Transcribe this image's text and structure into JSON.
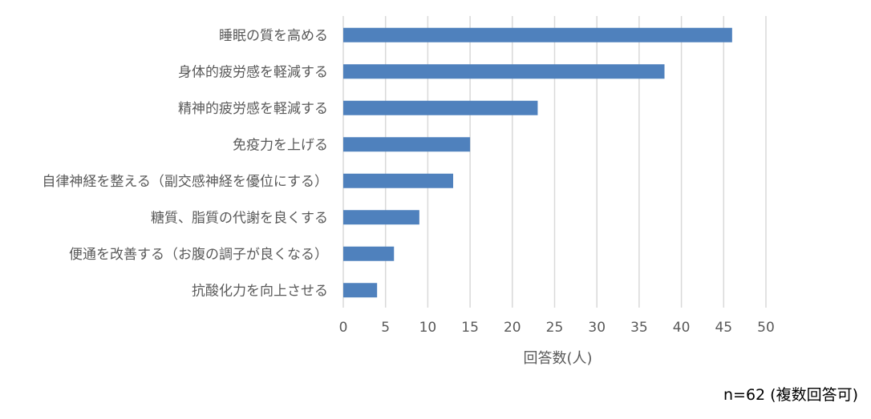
{
  "chart_data": {
    "type": "bar",
    "orientation": "horizontal",
    "categories": [
      "睡眠の質を高める",
      "身体的疲労感を軽減する",
      "精神的疲労感を軽減する",
      "免疫力を上げる",
      "自律神経を整える（副交感神経を優位にする）",
      "糖質、脂質の代謝を良くする",
      "便通を改善する（お腹の調子が良くなる）",
      "抗酸化力を向上させる"
    ],
    "values": [
      46,
      38,
      23,
      15,
      13,
      9,
      6,
      4
    ],
    "xlabel": "回答数(人)",
    "ylabel": "",
    "xlim": [
      0,
      50
    ],
    "xticks": [
      0,
      5,
      10,
      15,
      20,
      25,
      30,
      35,
      40,
      45,
      50
    ],
    "grid": "vertical",
    "bar_color": "#4F81BD",
    "grid_color": "#D9D9D9"
  },
  "note": "n=62 (複数回答可)"
}
